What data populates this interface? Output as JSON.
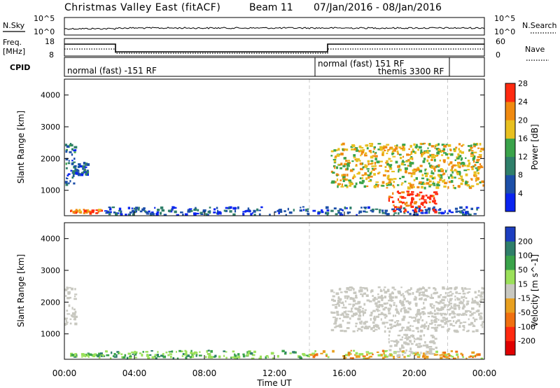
{
  "header": {
    "station": "Christmas Valley East (fitACF)",
    "beam": "Beam 11",
    "dates": "07/Jan/2016 - 08/Jan/2016"
  },
  "noise_panel": {
    "left_label": "N.Sky",
    "left_ticks": [
      "10^5",
      "10^0"
    ],
    "right_label": "N.Search",
    "right_ticks": [
      "10^5",
      "10^0"
    ]
  },
  "freq_panel": {
    "left_label_line1": "Freq.",
    "left_label_line2": "[MHz]",
    "left_ticks": [
      "18",
      "8"
    ],
    "right_label": "Nave",
    "right_ticks": [
      "60",
      "0"
    ],
    "cpid_label": "CPID",
    "cpid_segments": [
      {
        "text": "normal (fast) -151 RF"
      },
      {
        "text": "normal (fast) 151 RF"
      },
      {
        "text": "themis 3300 RF"
      }
    ]
  },
  "chart_data": [
    {
      "type": "heatmap",
      "title": "",
      "xlabel": "",
      "ylabel": "Slant Range [km]",
      "yticks": [
        1000,
        2000,
        3000,
        4000
      ],
      "ylim": [
        200,
        4500
      ],
      "xlim": [
        0,
        24
      ],
      "colorbar_label": "Power [dB]",
      "colorbar_ticks": [
        4,
        8,
        12,
        16,
        20,
        24,
        28
      ],
      "colorbar_colors": [
        "#0a24f0",
        "#1c4fa8",
        "#2f7f6a",
        "#3aa34a",
        "#e8c020",
        "#f08a10",
        "#ff2a10"
      ],
      "features": [
        {
          "t": [
            0.0,
            0.6
          ],
          "range": [
            1200,
            2500
          ],
          "level": 12
        },
        {
          "t": [
            0.5,
            1.3
          ],
          "range": [
            1500,
            1900
          ],
          "level": 10
        },
        {
          "t": [
            0.3,
            2.2
          ],
          "range": [
            300,
            420
          ],
          "level": 28
        },
        {
          "t": [
            2.2,
            23.8
          ],
          "range": [
            250,
            500
          ],
          "level": 10
        },
        {
          "t": [
            15.2,
            23.9
          ],
          "range": [
            1100,
            2500
          ],
          "level": 22
        },
        {
          "t": [
            18.5,
            21.2
          ],
          "range": [
            350,
            1000
          ],
          "level": 30
        }
      ]
    },
    {
      "type": "heatmap",
      "title": "",
      "xlabel": "Time UT",
      "ylabel": "Slant Range [km]",
      "xticks": [
        "00:00",
        "04:00",
        "08:00",
        "12:00",
        "16:00",
        "20:00",
        "00:00"
      ],
      "yticks": [
        1000,
        2000,
        3000,
        4000
      ],
      "ylim": [
        200,
        4500
      ],
      "xlim": [
        0,
        24
      ],
      "colorbar_label": "Velocity [m s^-1]",
      "colorbar_ticks": [
        200,
        100,
        50,
        15,
        -15,
        -50,
        -100,
        -200
      ],
      "colorbar_colors": [
        "#1c3ec0",
        "#2f7f6a",
        "#3aa34a",
        "#9be05a",
        "#c8c8c0",
        "#e8a020",
        "#f07010",
        "#ff2a10",
        "#e00000"
      ],
      "features": [
        {
          "t": [
            0.0,
            0.6
          ],
          "range": [
            1300,
            2500
          ],
          "class": "ground"
        },
        {
          "t": [
            0.3,
            2.2
          ],
          "range": [
            300,
            420
          ],
          "class": "positive"
        },
        {
          "t": [
            2.2,
            14.0
          ],
          "range": [
            250,
            500
          ],
          "class": "positive"
        },
        {
          "t": [
            14.0,
            23.8
          ],
          "range": [
            250,
            500
          ],
          "class": "negative"
        },
        {
          "t": [
            15.2,
            23.9
          ],
          "range": [
            1100,
            2500
          ],
          "class": "ground"
        },
        {
          "t": [
            18.5,
            21.2
          ],
          "range": [
            350,
            1000
          ],
          "class": "ground"
        }
      ]
    }
  ]
}
